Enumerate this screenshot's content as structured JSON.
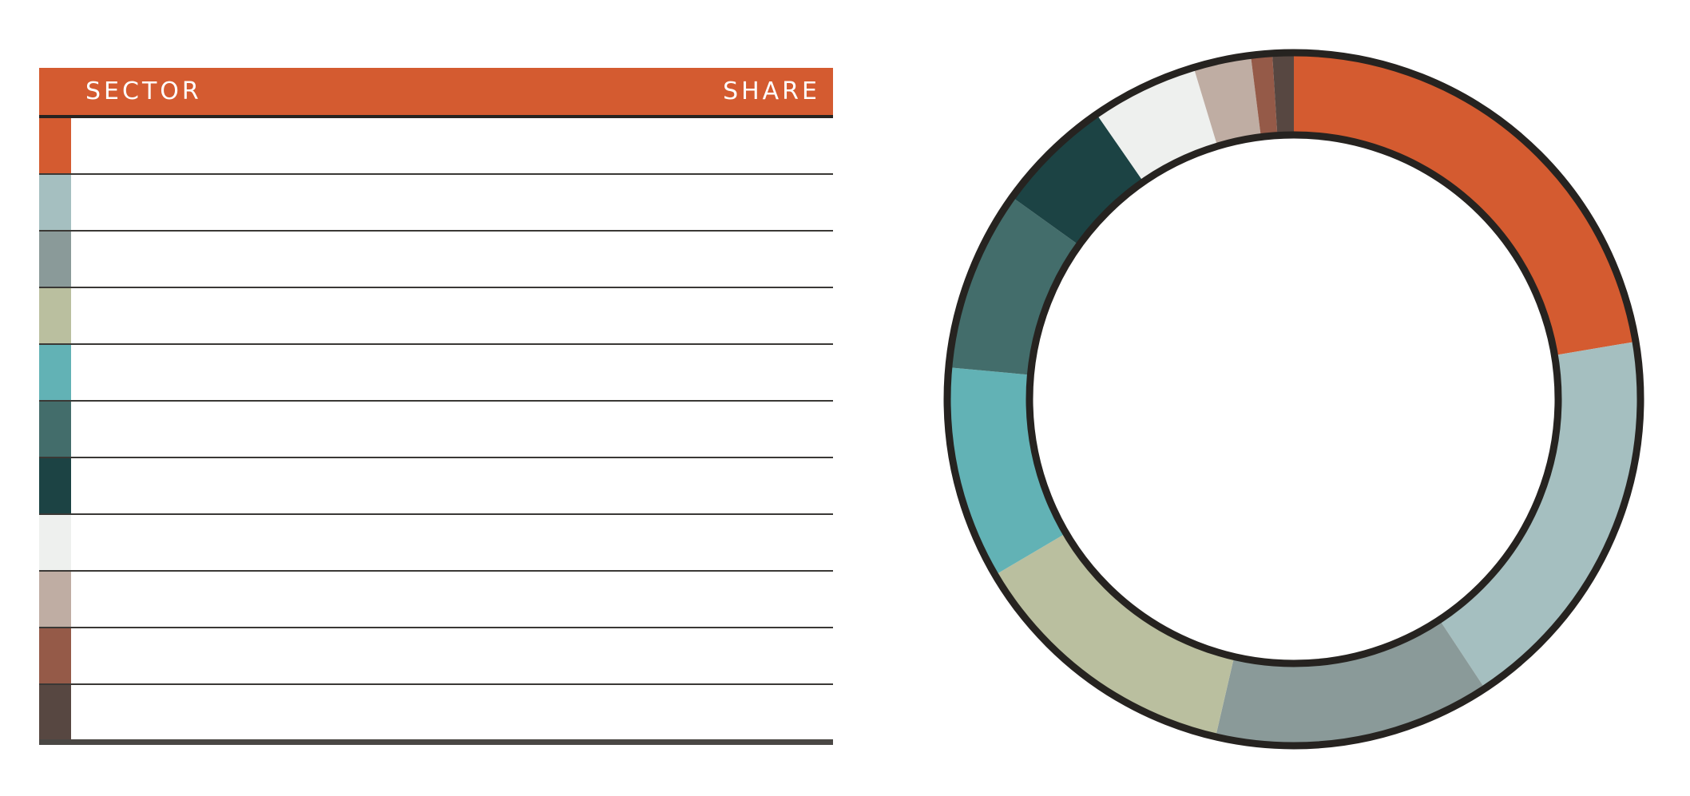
{
  "table": {
    "header_sector": "SECTOR",
    "header_share": "SHARE",
    "header_color": "#d45b30"
  },
  "chart_data": {
    "type": "pie",
    "variant": "donut",
    "title": "",
    "categories": [
      "",
      "",
      "",
      "",
      "",
      "",
      "",
      "",
      "",
      "",
      ""
    ],
    "values": [
      22.5,
      18.5,
      13.0,
      13.0,
      10.0,
      8.5,
      5.5,
      5.0,
      2.7,
      1.0,
      1.0
    ],
    "colors": [
      "#d45b30",
      "#a5bfc0",
      "#8a9a99",
      "#babf9f",
      "#62b2b5",
      "#436d6b",
      "#1c4344",
      "#eef0ee",
      "#bfada3",
      "#955a48",
      "#574741"
    ],
    "outline_color": "#262320",
    "legend": "left-table"
  }
}
